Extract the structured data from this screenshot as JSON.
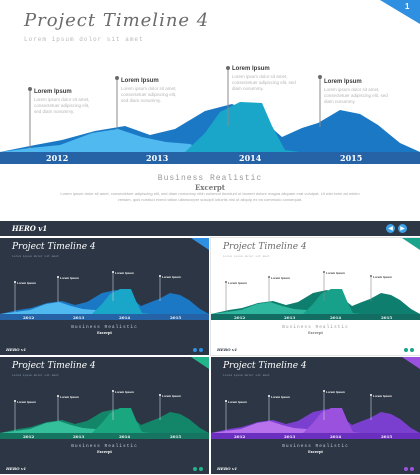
{
  "slide": {
    "title": "Project Timeline 4",
    "subtitle": "Lorem ipsum dolor sit amet",
    "page_number": "1",
    "accent": "#2f8fe0",
    "annotations": [
      {
        "heading": "Lorem Ipsum",
        "body": "Lorem ipsum dolor sit amet, consectetuer adipiscing elit, sed diam nonummy."
      },
      {
        "heading": "Lorem Ipsum",
        "body": "Lorem ipsum dolor sit amet, consectetuer adipiscing elit, sed diam nonummy."
      },
      {
        "heading": "Lorem Ipsum",
        "body": "Lorem ipsum dolor sit amet, consectetuer adipiscing elit, sed diam nonummy."
      },
      {
        "heading": "Lorem Ipsum",
        "body": "Lorem ipsum dolor sit amet, consectetuer adipiscing elit, sed diam nonummy."
      }
    ],
    "years": [
      "2012",
      "2013",
      "2014",
      "2015"
    ],
    "section_title": "Business Realistic",
    "section_subtitle": "Excerpt",
    "section_body": "Lorem ipsum dolor sit amet, consectetuer adipiscing elit, sed diam nonummy nibh euismod tincidunt ut laoreet dolore magna aliquam erat volutpat. Ut wisi enim ad minim veniam, quis nostrud exerci tation ullamcorper suscipit lobortis nisl ut aliquip ex ea commodo consequat.",
    "logo": "HERO v1",
    "colors": {
      "mountain_dark": "#1b78c4",
      "mountain_light": "#4fb9f0",
      "mountain_teal": "#19a6c8",
      "axis": "#2563a6"
    }
  },
  "thumbnails": [
    {
      "title": "Project Timeline 4",
      "subtitle": "Lorem ipsum dolor sit amet",
      "page_number": "2",
      "theme": "dark",
      "palette": "blue",
      "years": [
        "2012",
        "2013",
        "2014",
        "2015"
      ],
      "section_title": "Business Realistic",
      "section_subtitle": "Excerpt",
      "logo": "HERO v1",
      "heading": "Lorem Ipsum"
    },
    {
      "title": "Project Timeline 4",
      "subtitle": "Lorem ipsum dolor sit amet",
      "page_number": "3",
      "theme": "light",
      "palette": "teal",
      "years": [
        "2012",
        "2013",
        "2014",
        "2015"
      ],
      "section_title": "Business Realistic",
      "section_subtitle": "Excerpt",
      "logo": "HERO v1",
      "heading": "Lorem Ipsum"
    },
    {
      "title": "Project Timeline 4",
      "subtitle": "Lorem ipsum dolor sit amet",
      "page_number": "4",
      "theme": "dark",
      "palette": "green",
      "years": [
        "2012",
        "2013",
        "2014",
        "2015"
      ],
      "section_title": "Business Realistic",
      "section_subtitle": "Excerpt",
      "logo": "HERO v1",
      "heading": "Lorem Ipsum"
    },
    {
      "title": "Project Timeline 4",
      "subtitle": "Lorem ipsum dolor sit amet",
      "page_number": "5",
      "theme": "dark",
      "palette": "purple",
      "years": [
        "2012",
        "2013",
        "2014",
        "2015"
      ],
      "section_title": "Business Realistic",
      "section_subtitle": "Excerpt",
      "logo": "HERO v1",
      "heading": "Lorem Ipsum"
    }
  ],
  "palettes": {
    "blue": {
      "a": "#1b78c4",
      "b": "#4fb9f0",
      "c": "#19a6c8",
      "axis": "#2563a6",
      "corner": "#2f8fe0"
    },
    "teal": {
      "a": "#0e7f6e",
      "b": "#2fb7a0",
      "c": "#17a08a",
      "axis": "#146d63",
      "corner": "#1aa48c"
    },
    "green": {
      "a": "#13866a",
      "b": "#33c09a",
      "c": "#1aa77f",
      "axis": "#167560",
      "corner": "#22b48a"
    },
    "purple": {
      "a": "#7b3fd0",
      "b": "#b873ec",
      "c": "#9a52de",
      "axis": "#6b2fc0",
      "corner": "#9a52de"
    }
  },
  "theme_colors": {
    "dark_bg": "#2c3645",
    "light_bg": "#ffffff",
    "dark_text": "#ffffff",
    "light_text": "#6b6b6b"
  }
}
